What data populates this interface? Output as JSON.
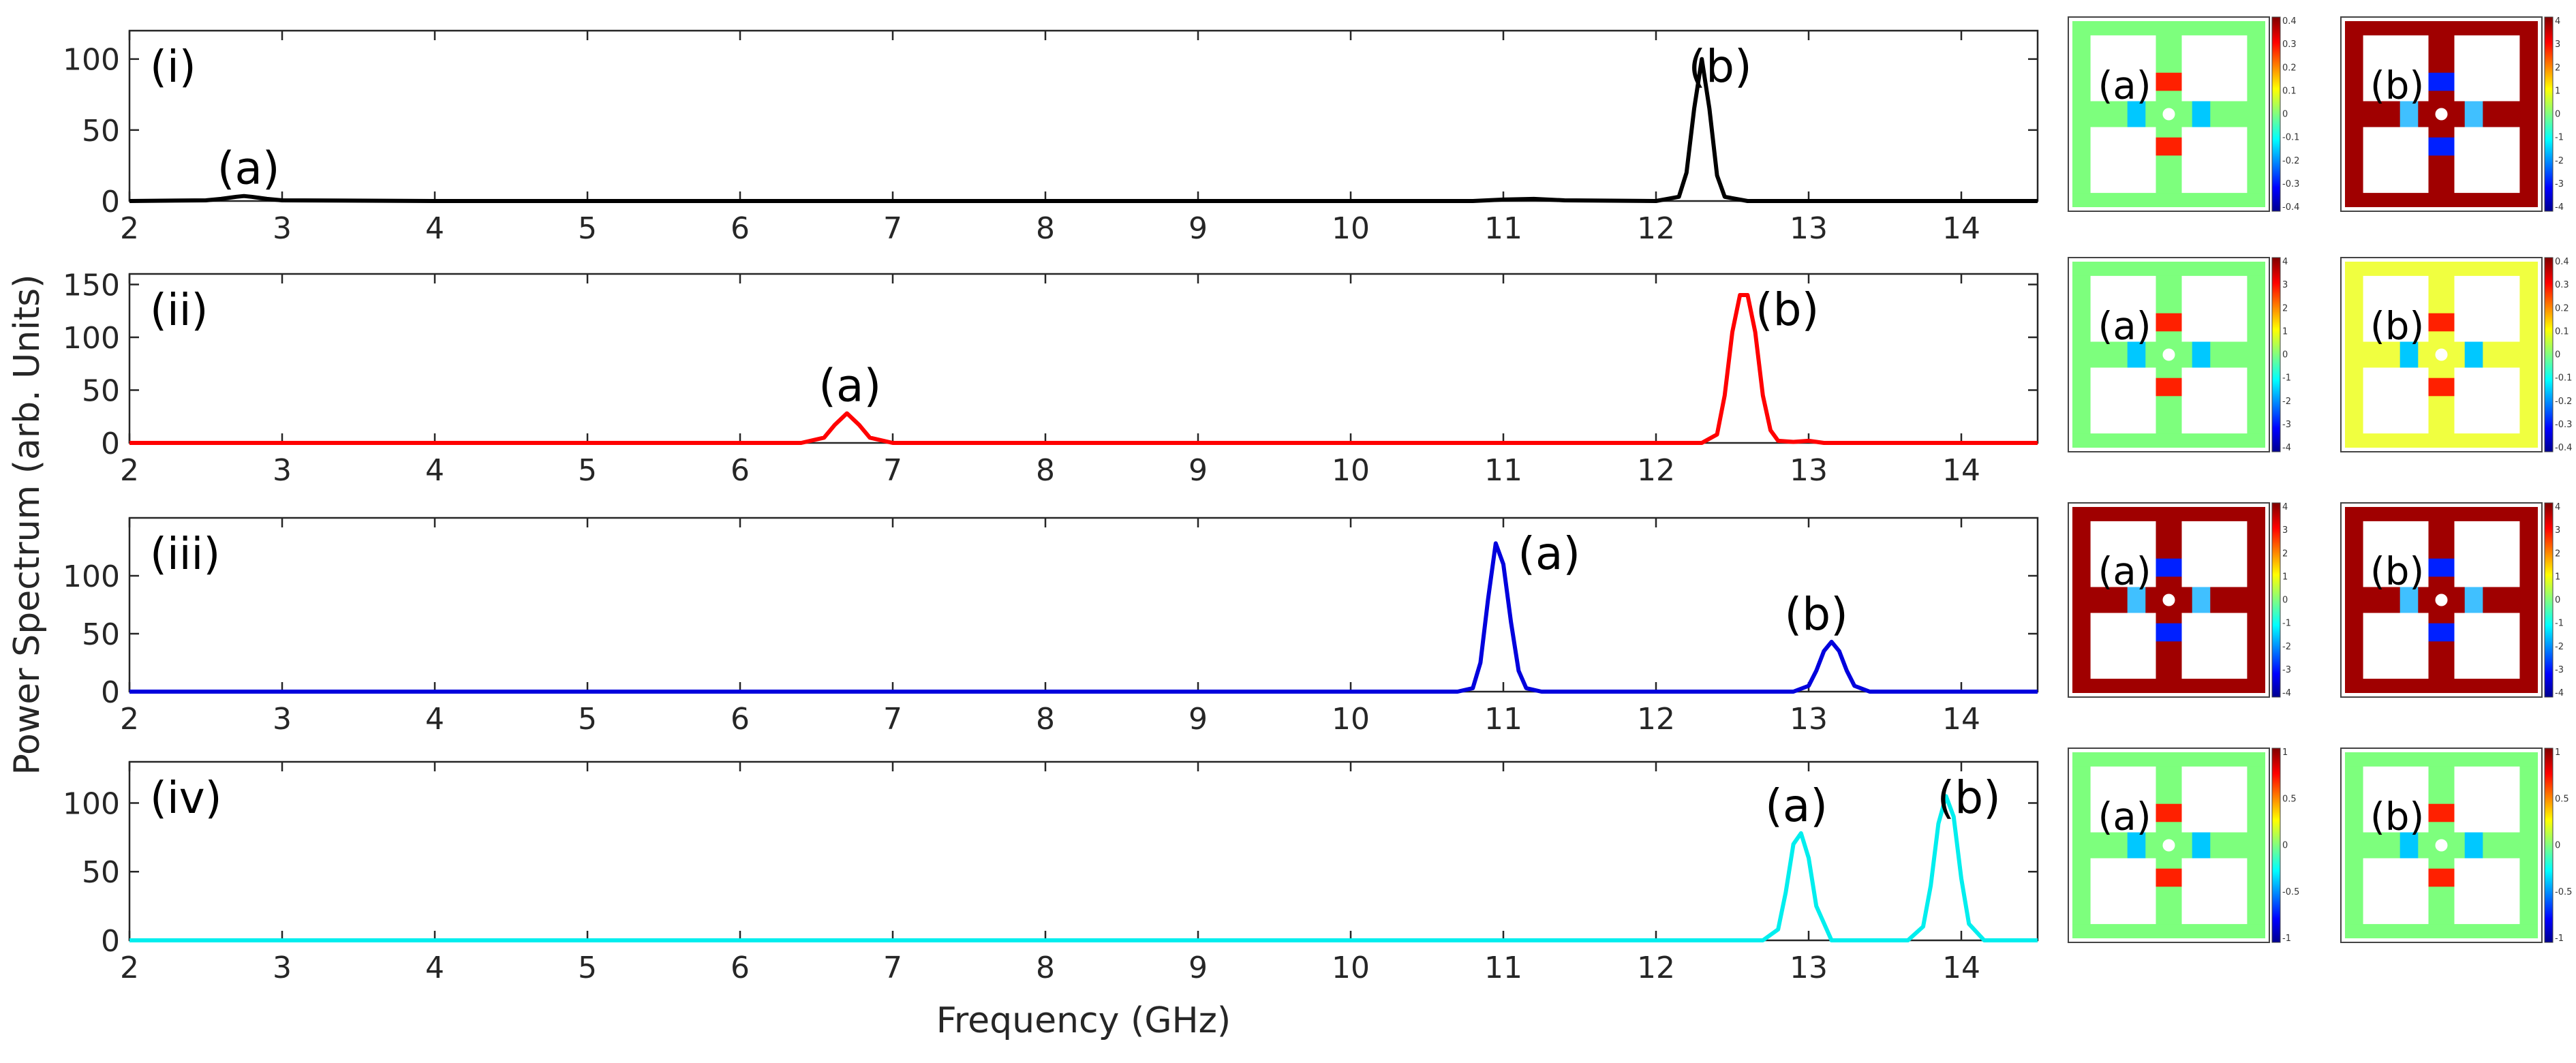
{
  "colors": {
    "panel_i": "#000000",
    "panel_ii": "#ff0000",
    "panel_iii": "#0000dd",
    "panel_iv": "#00eeee"
  },
  "chart_data": [
    {
      "type": "line",
      "panel": "(i)",
      "color": "#000000",
      "x": [
        2,
        2.5,
        2.6,
        2.7,
        2.75,
        2.8,
        2.9,
        3.0,
        4,
        10.8,
        11.0,
        11.2,
        11.4,
        12.0,
        12.15,
        12.2,
        12.25,
        12.3,
        12.35,
        12.4,
        12.45,
        12.6,
        14.5
      ],
      "y": [
        0,
        0.5,
        1.5,
        3,
        3.5,
        3,
        1.5,
        0.5,
        0,
        0,
        1,
        1.5,
        0.5,
        0,
        3,
        20,
        65,
        100,
        65,
        18,
        3,
        0,
        0
      ],
      "xlim": [
        2,
        14.5
      ],
      "ylim": [
        0,
        120
      ],
      "yticks": [
        0,
        50,
        100
      ],
      "annotations": [
        {
          "text": "(a)",
          "x": 2.78
        },
        {
          "text": "(b)",
          "x": 12.42
        }
      ]
    },
    {
      "type": "line",
      "panel": "(ii)",
      "color": "#ff0000",
      "x": [
        2,
        6.4,
        6.55,
        6.62,
        6.7,
        6.78,
        6.85,
        7.0,
        12.3,
        12.4,
        12.45,
        12.5,
        12.55,
        12.6,
        12.65,
        12.7,
        12.75,
        12.8,
        12.9,
        13.0,
        13.1,
        14.5
      ],
      "y": [
        0,
        0,
        5,
        17,
        28,
        17,
        5,
        0,
        0,
        8,
        45,
        105,
        140,
        140,
        105,
        45,
        12,
        2,
        1,
        2,
        0,
        0
      ],
      "xlim": [
        2,
        14.5
      ],
      "ylim": [
        0,
        160
      ],
      "yticks": [
        0,
        50,
        100,
        150
      ],
      "annotations": [
        {
          "text": "(a)",
          "x": 6.72
        },
        {
          "text": "(b)",
          "x": 12.86
        }
      ]
    },
    {
      "type": "line",
      "panel": "(iii)",
      "color": "#0000dd",
      "x": [
        2,
        10.7,
        10.8,
        10.85,
        10.9,
        10.95,
        11.0,
        11.05,
        11.1,
        11.15,
        11.25,
        12.9,
        13.0,
        13.05,
        13.1,
        13.15,
        13.2,
        13.25,
        13.3,
        13.4,
        14.5
      ],
      "y": [
        0,
        0,
        3,
        25,
        80,
        128,
        110,
        60,
        18,
        3,
        0,
        0,
        5,
        18,
        35,
        43,
        35,
        18,
        5,
        0,
        0
      ],
      "xlim": [
        2,
        14.5
      ],
      "ylim": [
        0,
        150
      ],
      "yticks": [
        0,
        50,
        100
      ],
      "annotations": [
        {
          "text": "(a)",
          "x": 11.3
        },
        {
          "text": "(b)",
          "x": 13.05
        }
      ]
    },
    {
      "type": "line",
      "panel": "(iv)",
      "color": "#00eeee",
      "x": [
        2,
        12.7,
        12.8,
        12.85,
        12.9,
        12.95,
        13.0,
        13.05,
        13.15,
        13.65,
        13.75,
        13.8,
        13.85,
        13.9,
        13.95,
        14.0,
        14.05,
        14.15,
        14.5
      ],
      "y": [
        0,
        0,
        8,
        35,
        70,
        78,
        60,
        25,
        0,
        0,
        10,
        40,
        85,
        105,
        90,
        45,
        12,
        0,
        0
      ],
      "xlim": [
        2,
        14.5
      ],
      "ylim": [
        0,
        130
      ],
      "yticks": [
        0,
        50,
        100
      ],
      "annotations": [
        {
          "text": "(a)",
          "x": 12.92
        },
        {
          "text": "(b)",
          "x": 14.05
        }
      ]
    }
  ],
  "axis": {
    "xticks": [
      2,
      3,
      4,
      5,
      6,
      7,
      8,
      9,
      10,
      11,
      12,
      13,
      14
    ],
    "xlabel": "Frequency (GHz)",
    "ylabel": "Power Spectrum (arb. Units)"
  },
  "mode_maps": [
    {
      "row": "(i)",
      "tag": "(a)",
      "colorbar": [
        "0.4",
        "0.3",
        "0.2",
        "0.1",
        "0",
        "-0.1",
        "-0.2",
        "-0.3",
        "-0.4"
      ]
    },
    {
      "row": "(i)",
      "tag": "(b)",
      "colorbar": [
        "4",
        "3",
        "2",
        "1",
        "0",
        "-1",
        "-2",
        "-3",
        "-4"
      ]
    },
    {
      "row": "(ii)",
      "tag": "(a)",
      "colorbar": [
        "4",
        "3",
        "2",
        "1",
        "0",
        "-1",
        "-2",
        "-3",
        "-4"
      ]
    },
    {
      "row": "(ii)",
      "tag": "(b)",
      "colorbar": [
        "0.4",
        "0.3",
        "0.2",
        "0.1",
        "0",
        "-0.1",
        "-0.2",
        "-0.3",
        "-0.4"
      ]
    },
    {
      "row": "(iii)",
      "tag": "(a)",
      "colorbar": [
        "4",
        "3",
        "2",
        "1",
        "0",
        "-1",
        "-2",
        "-3",
        "-4"
      ]
    },
    {
      "row": "(iii)",
      "tag": "(b)",
      "colorbar": [
        "4",
        "3",
        "2",
        "1",
        "0",
        "-1",
        "-2",
        "-3",
        "-4"
      ]
    },
    {
      "row": "(iv)",
      "tag": "(a)",
      "colorbar": [
        "1",
        "0.5",
        "0",
        "-0.5",
        "-1"
      ]
    },
    {
      "row": "(iv)",
      "tag": "(b)",
      "colorbar": [
        "1",
        "0.5",
        "0",
        "-0.5",
        "-1"
      ]
    }
  ]
}
